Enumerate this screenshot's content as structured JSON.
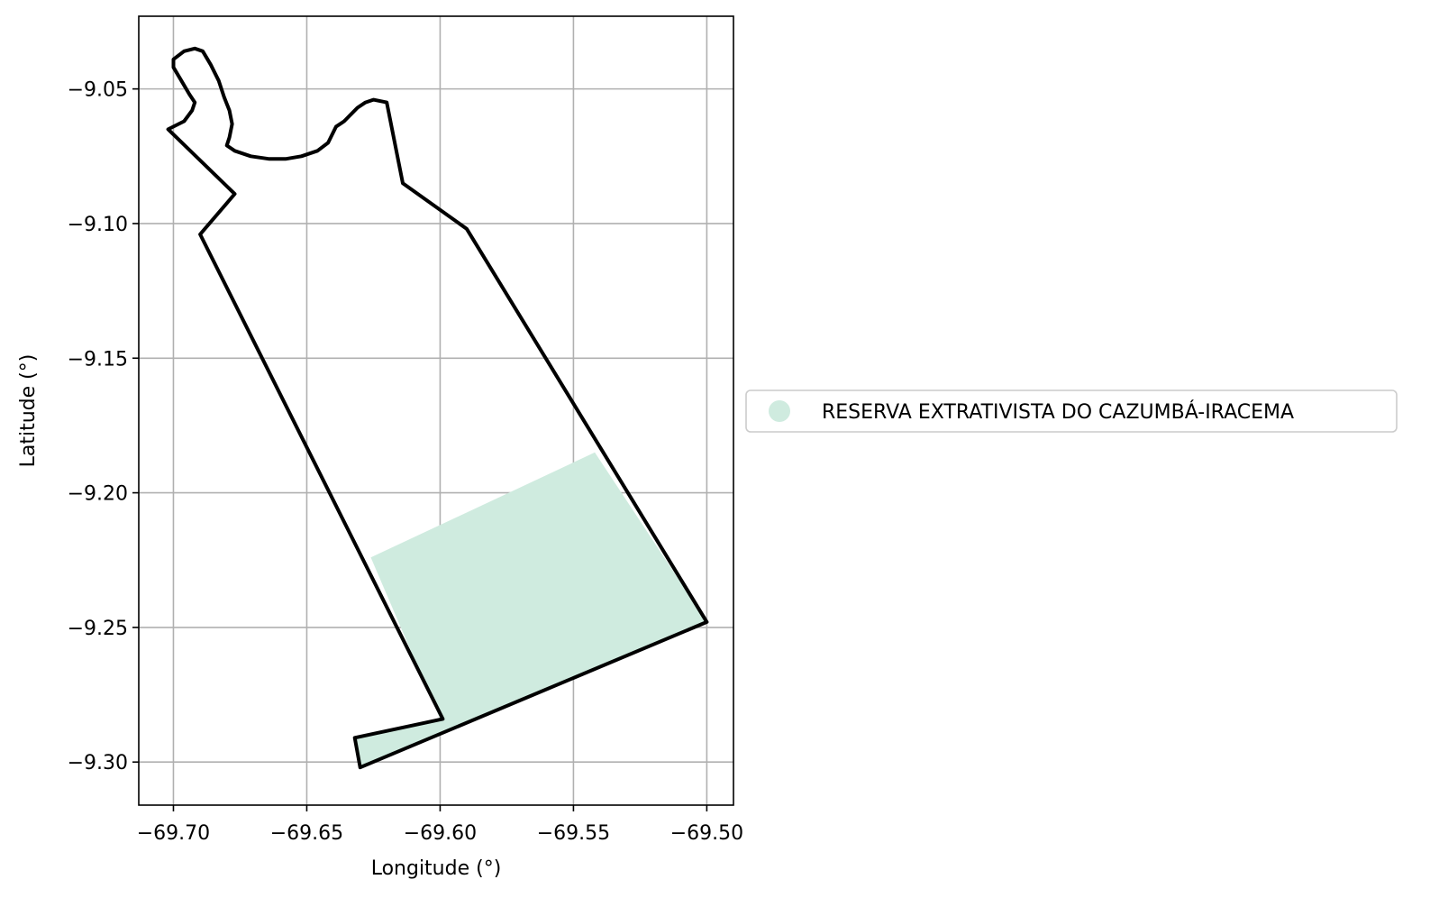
{
  "map": {
    "xlabel": "Longitude (°)",
    "ylabel": "Latitude (°)",
    "xlim": [
      -69.713,
      -69.49
    ],
    "ylim": [
      -9.316,
      -9.023
    ],
    "grid": true,
    "x_ticks": [
      -69.7,
      -69.65,
      -69.6,
      -69.55,
      -69.5
    ],
    "x_tick_labels": [
      "−69.70",
      "−69.65",
      "−69.60",
      "−69.55",
      "−69.50"
    ],
    "y_ticks": [
      -9.05,
      -9.1,
      -9.15,
      -9.2,
      -9.25,
      -9.3
    ],
    "y_tick_labels": [
      "−9.05",
      "−9.10",
      "−9.15",
      "−9.20",
      "−9.25",
      "−9.30"
    ],
    "legend_position": "right",
    "colors": {
      "area_fill": "#cfebdf",
      "outline": "#000000",
      "grid": "#b0b0b0"
    }
  },
  "layers": {
    "reserve_area": {
      "name": "RESERVA EXTRATIVISTA DO CAZUMBÁ-IRACEMA",
      "polygon": [
        [
          -69.626,
          -9.224
        ],
        [
          -69.542,
          -9.185
        ],
        [
          -69.5,
          -9.248
        ],
        [
          -69.63,
          -9.302
        ],
        [
          -69.632,
          -9.291
        ],
        [
          -69.6,
          -9.284
        ]
      ]
    },
    "boundary": {
      "polygon": [
        [
          -69.7,
          -9.039
        ],
        [
          -69.696,
          -9.036
        ],
        [
          -69.692,
          -9.035
        ],
        [
          -69.689,
          -9.036
        ],
        [
          -69.686,
          -9.041
        ],
        [
          -69.683,
          -9.047
        ],
        [
          -69.681,
          -9.053
        ],
        [
          -69.679,
          -9.058
        ],
        [
          -69.678,
          -9.063
        ],
        [
          -69.679,
          -9.068
        ],
        [
          -69.68,
          -9.071
        ],
        [
          -69.677,
          -9.073
        ],
        [
          -69.671,
          -9.075
        ],
        [
          -69.664,
          -9.076
        ],
        [
          -69.658,
          -9.076
        ],
        [
          -69.652,
          -9.075
        ],
        [
          -69.646,
          -9.073
        ],
        [
          -69.642,
          -9.07
        ],
        [
          -69.639,
          -9.064
        ],
        [
          -69.636,
          -9.062
        ],
        [
          -69.634,
          -9.06
        ],
        [
          -69.631,
          -9.057
        ],
        [
          -69.628,
          -9.055
        ],
        [
          -69.625,
          -9.054
        ],
        [
          -69.62,
          -9.055
        ],
        [
          -69.614,
          -9.085
        ],
        [
          -69.59,
          -9.102
        ],
        [
          -69.5,
          -9.248
        ],
        [
          -69.63,
          -9.302
        ],
        [
          -69.632,
          -9.291
        ],
        [
          -69.599,
          -9.284
        ],
        [
          -69.69,
          -9.104
        ],
        [
          -69.677,
          -9.089
        ],
        [
          -69.702,
          -9.065
        ],
        [
          -69.696,
          -9.062
        ],
        [
          -69.693,
          -9.058
        ],
        [
          -69.692,
          -9.055
        ],
        [
          -69.694,
          -9.052
        ],
        [
          -69.697,
          -9.047
        ],
        [
          -69.7,
          -9.042
        ]
      ]
    }
  }
}
